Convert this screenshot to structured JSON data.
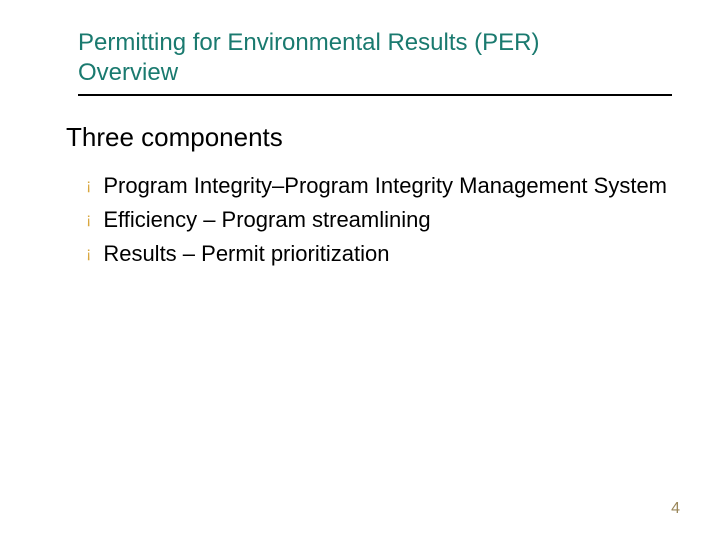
{
  "colors": {
    "title": "#1a7a6f",
    "bullet": "#d9a73e",
    "pagenum": "#9a875a",
    "rule": "#000000",
    "background": "#ffffff",
    "body_text": "#000000"
  },
  "typography": {
    "title_fontsize": 24,
    "subheading_fontsize": 26,
    "bullet_fontsize": 22,
    "pagenum_fontsize": 16,
    "font_family": "Verdana"
  },
  "title": {
    "line1": "Permitting for Environmental Results (PER)",
    "line2": "Overview"
  },
  "subheading": "Three components",
  "bullets": [
    "Program Integrity–Program Integrity Management System",
    "Efficiency –  Program streamlining",
    "Results – Permit prioritization"
  ],
  "bullet_marker": "¡",
  "page_number": "4"
}
